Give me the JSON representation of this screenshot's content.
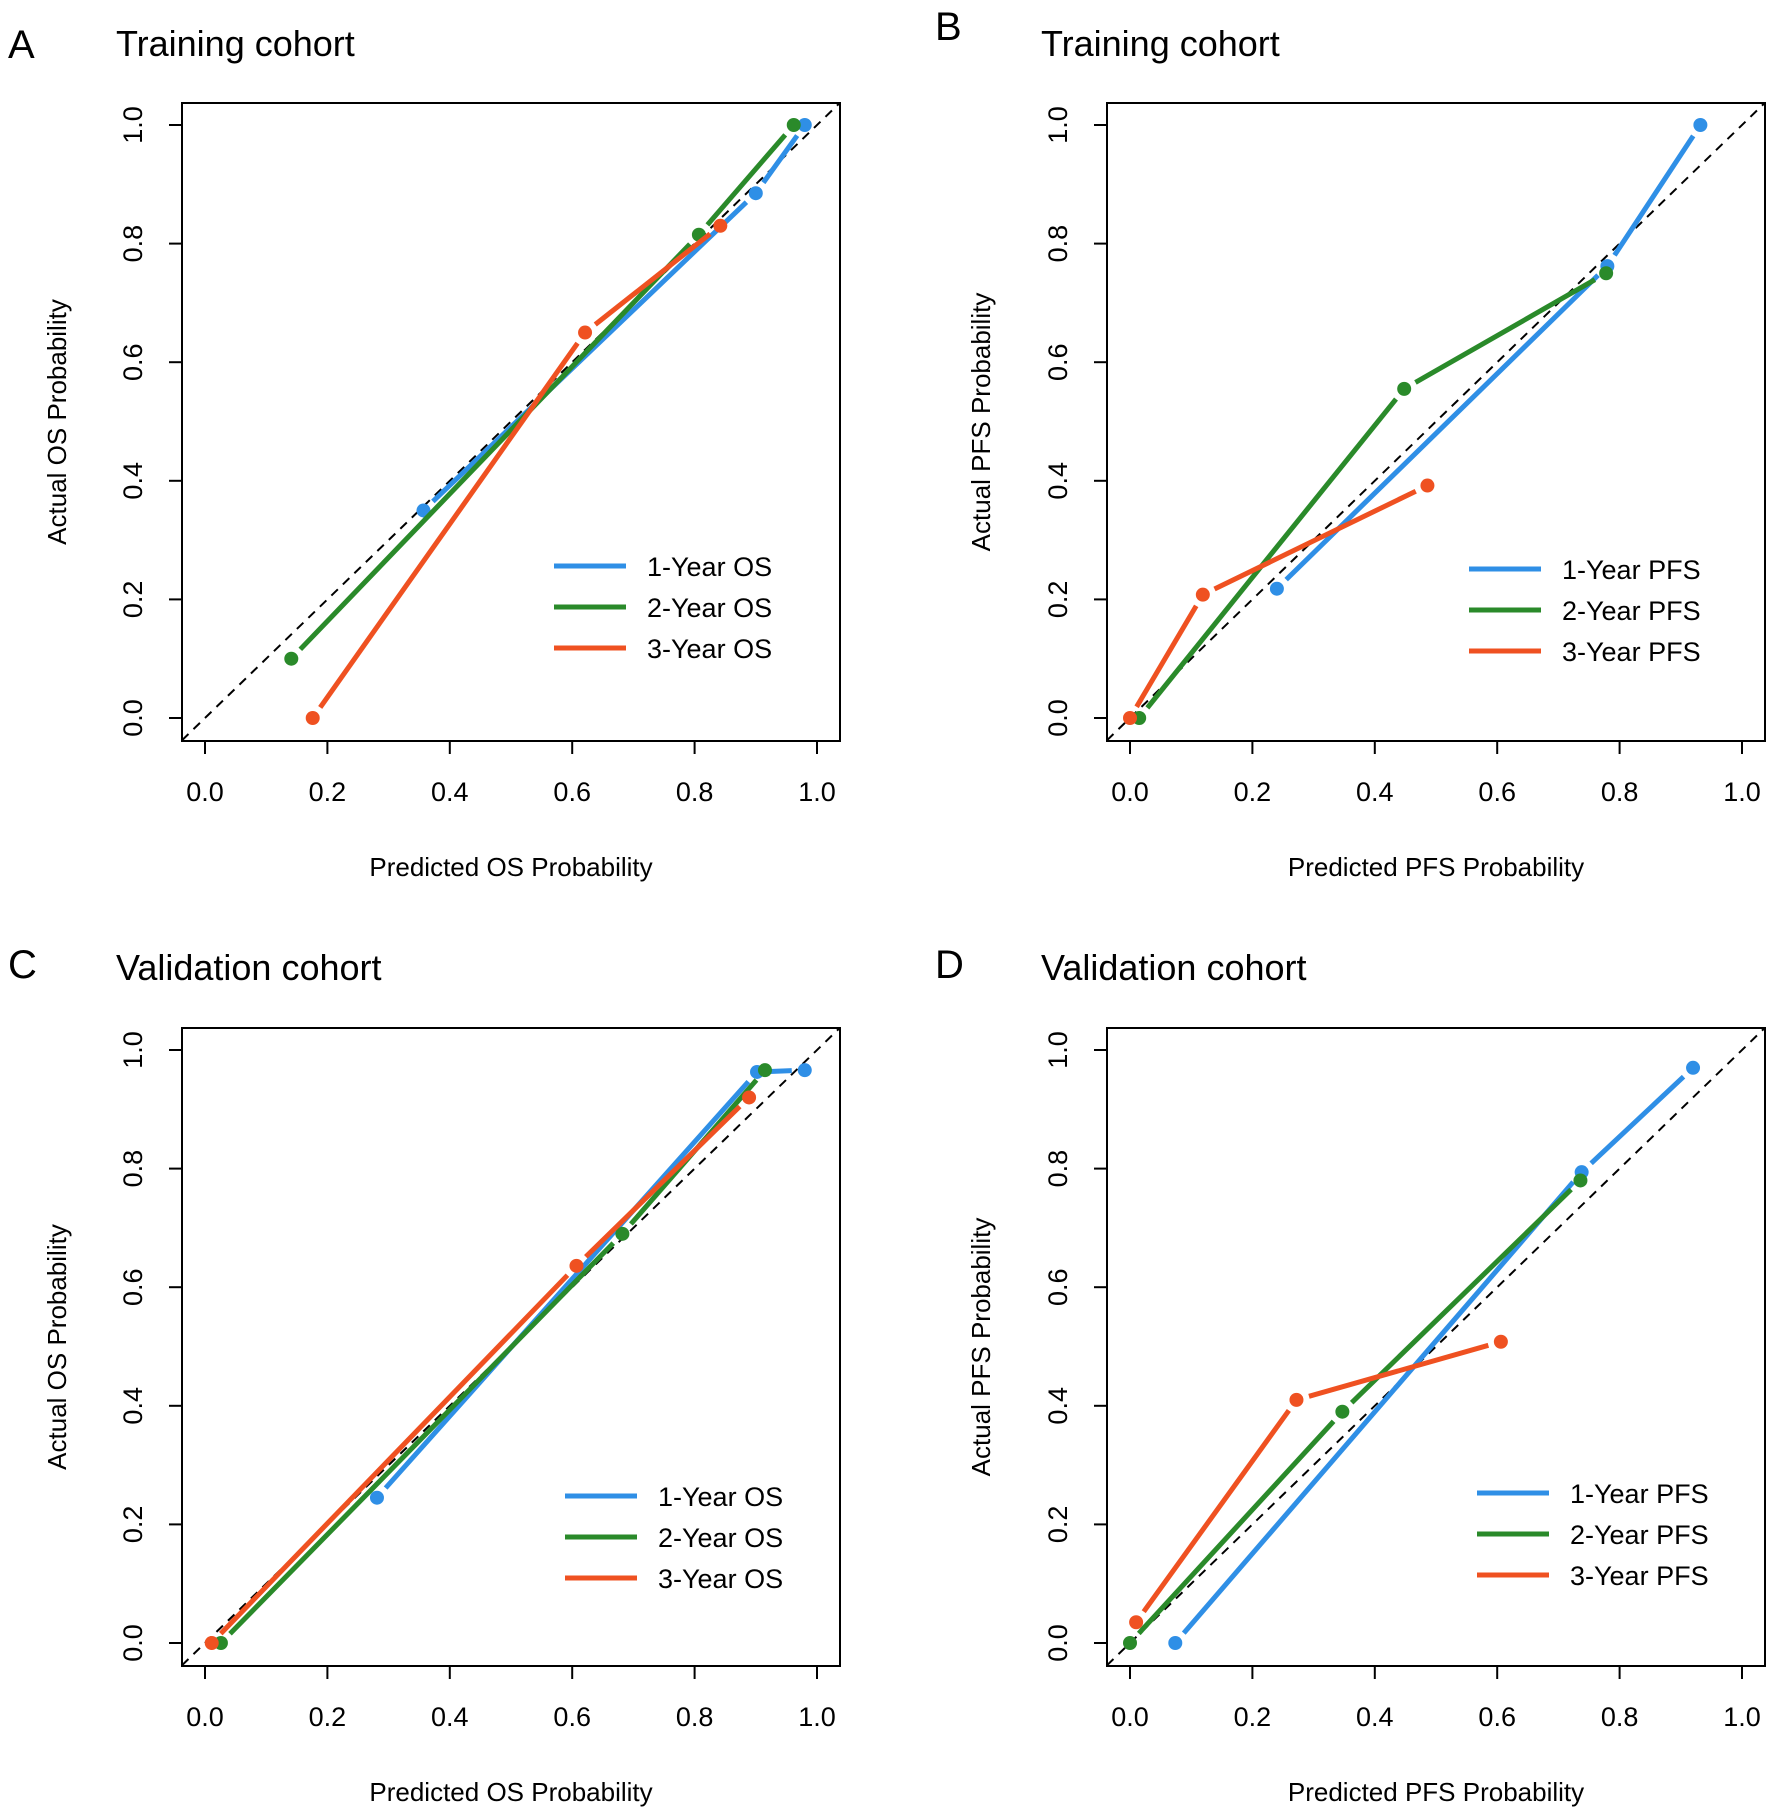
{
  "chart_data": [
    {
      "type": "line",
      "panel": "A",
      "title": "Training cohort",
      "xlabel": "Predicted OS Probability",
      "ylabel": "Actual OS Probability",
      "xlim": [
        0.0,
        1.0
      ],
      "ylim": [
        0.0,
        1.0
      ],
      "xticks": [
        "0.0",
        "0.2",
        "0.4",
        "0.6",
        "0.8",
        "1.0"
      ],
      "yticks": [
        "0.0",
        "0.2",
        "0.4",
        "0.6",
        "0.8",
        "1.0"
      ],
      "reference_line": "diagonal",
      "legend_position": "bottom-right",
      "series": [
        {
          "name": "1-Year OS",
          "color": "#2f8fe6",
          "points": [
            [
              0.357,
              0.35
            ],
            [
              0.9,
              0.885
            ],
            [
              0.98,
              1.0
            ]
          ]
        },
        {
          "name": "2-Year OS",
          "color": "#2a8a2a",
          "points": [
            [
              0.141,
              0.1
            ],
            [
              0.807,
              0.815
            ],
            [
              0.962,
              1.0
            ]
          ]
        },
        {
          "name": "3-Year OS",
          "color": "#ef5121",
          "points": [
            [
              0.176,
              0.0
            ],
            [
              0.621,
              0.65
            ],
            [
              0.842,
              0.83
            ]
          ]
        }
      ]
    },
    {
      "type": "line",
      "panel": "B",
      "title": "Training cohort",
      "xlabel": "Predicted PFS Probability",
      "ylabel": "Actual PFS Probability",
      "xlim": [
        0.0,
        1.0
      ],
      "ylim": [
        0.0,
        1.0
      ],
      "xticks": [
        "0.0",
        "0.2",
        "0.4",
        "0.6",
        "0.8",
        "1.0"
      ],
      "yticks": [
        "0.0",
        "0.2",
        "0.4",
        "0.6",
        "0.8",
        "1.0"
      ],
      "reference_line": "diagonal",
      "legend_position": "bottom-right",
      "series": [
        {
          "name": "1-Year PFS",
          "color": "#2f8fe6",
          "points": [
            [
              0.24,
              0.218
            ],
            [
              0.78,
              0.762
            ],
            [
              0.932,
              1.0
            ]
          ]
        },
        {
          "name": "2-Year PFS",
          "color": "#2a8a2a",
          "points": [
            [
              0.015,
              0.0
            ],
            [
              0.448,
              0.555
            ],
            [
              0.778,
              0.75
            ]
          ]
        },
        {
          "name": "3-Year PFS",
          "color": "#ef5121",
          "points": [
            [
              0.0,
              0.0
            ],
            [
              0.119,
              0.208
            ],
            [
              0.486,
              0.392
            ]
          ]
        }
      ]
    },
    {
      "type": "line",
      "panel": "C",
      "title": "Validation cohort",
      "xlabel": "Predicted OS Probability",
      "ylabel": "Actual OS Probability",
      "xlim": [
        0.0,
        1.0
      ],
      "ylim": [
        0.0,
        1.0
      ],
      "xticks": [
        "0.0",
        "0.2",
        "0.4",
        "0.6",
        "0.8",
        "1.0"
      ],
      "yticks": [
        "0.0",
        "0.2",
        "0.4",
        "0.6",
        "0.8",
        "1.0"
      ],
      "reference_line": "diagonal",
      "legend_position": "bottom-right",
      "series": [
        {
          "name": "1-Year OS",
          "color": "#2f8fe6",
          "points": [
            [
              0.281,
              0.245
            ],
            [
              0.902,
              0.963
            ],
            [
              0.98,
              0.966
            ]
          ]
        },
        {
          "name": "2-Year OS",
          "color": "#2a8a2a",
          "points": [
            [
              0.026,
              0.0
            ],
            [
              0.682,
              0.69
            ],
            [
              0.915,
              0.966
            ]
          ]
        },
        {
          "name": "3-Year OS",
          "color": "#ef5121",
          "points": [
            [
              0.011,
              0.0
            ],
            [
              0.607,
              0.636
            ],
            [
              0.889,
              0.92
            ]
          ]
        }
      ]
    },
    {
      "type": "line",
      "panel": "D",
      "title": "Validation cohort",
      "xlabel": "Predicted PFS Probability",
      "ylabel": "Actual PFS Probability",
      "xlim": [
        0.0,
        1.0
      ],
      "ylim": [
        0.0,
        1.0
      ],
      "xticks": [
        "0.0",
        "0.2",
        "0.4",
        "0.6",
        "0.8",
        "1.0"
      ],
      "yticks": [
        "0.0",
        "0.2",
        "0.4",
        "0.6",
        "0.8",
        "1.0"
      ],
      "reference_line": "diagonal",
      "legend_position": "bottom-right",
      "series": [
        {
          "name": "1-Year PFS",
          "color": "#2f8fe6",
          "points": [
            [
              0.074,
              0.0
            ],
            [
              0.738,
              0.794
            ],
            [
              0.92,
              0.97
            ]
          ]
        },
        {
          "name": "2-Year PFS",
          "color": "#2a8a2a",
          "points": [
            [
              0.0,
              0.0
            ],
            [
              0.347,
              0.39
            ],
            [
              0.736,
              0.78
            ]
          ]
        },
        {
          "name": "3-Year PFS",
          "color": "#ef5121",
          "points": [
            [
              0.01,
              0.035
            ],
            [
              0.272,
              0.41
            ],
            [
              0.606,
              0.508
            ]
          ]
        }
      ]
    }
  ]
}
